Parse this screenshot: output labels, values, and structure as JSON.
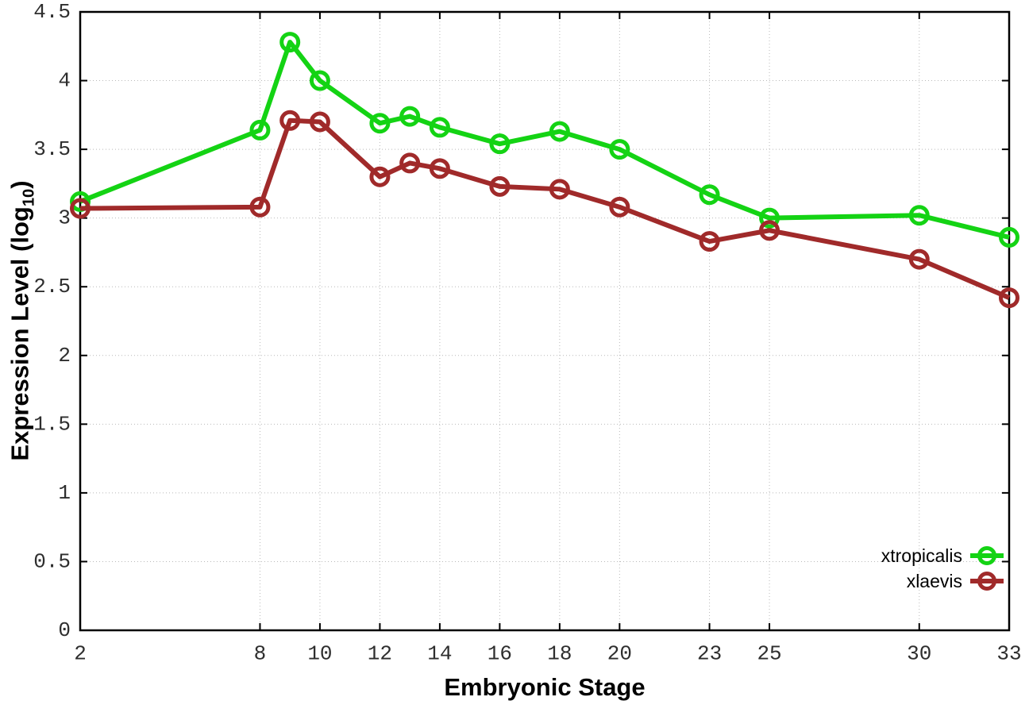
{
  "figure": {
    "background": "#ffffff",
    "xlabel": "Embryonic Stage",
    "ylabel_prefix": "Expression Level (log",
    "ylabel_sub": "10",
    "ylabel_suffix": ")"
  },
  "chart_data": {
    "type": "line",
    "title": "",
    "xlabel": "Embryonic Stage",
    "ylabel": "Expression Level (log10)",
    "xlim": [
      2,
      33
    ],
    "ylim": [
      0,
      4.5
    ],
    "grid": true,
    "legend_position": "bottom-right",
    "x_ticks": [
      2,
      8,
      10,
      12,
      14,
      16,
      18,
      20,
      23,
      25,
      30,
      33
    ],
    "y_ticks": [
      "0",
      "0.5",
      "1",
      "1.5",
      "2",
      "2.5",
      "3",
      "3.5",
      "4",
      "4.5"
    ],
    "x": [
      2,
      8,
      9,
      10,
      12,
      13,
      14,
      16,
      18,
      20,
      23,
      25,
      30,
      33
    ],
    "series": [
      {
        "name": "xtropicalis",
        "color": "#14d314",
        "values": [
          3.12,
          3.64,
          4.28,
          4.0,
          3.69,
          3.74,
          3.66,
          3.54,
          3.63,
          3.5,
          3.17,
          3.0,
          3.02,
          2.86
        ]
      },
      {
        "name": "xlaevis",
        "color": "#a02a2a",
        "values": [
          3.07,
          3.08,
          3.71,
          3.7,
          3.3,
          3.4,
          3.36,
          3.23,
          3.21,
          3.08,
          2.83,
          2.91,
          2.7,
          2.42
        ]
      }
    ],
    "colors": {
      "grid": "#b9b9b9",
      "border": "#000000",
      "tick_label": "#2e2e2e"
    }
  }
}
